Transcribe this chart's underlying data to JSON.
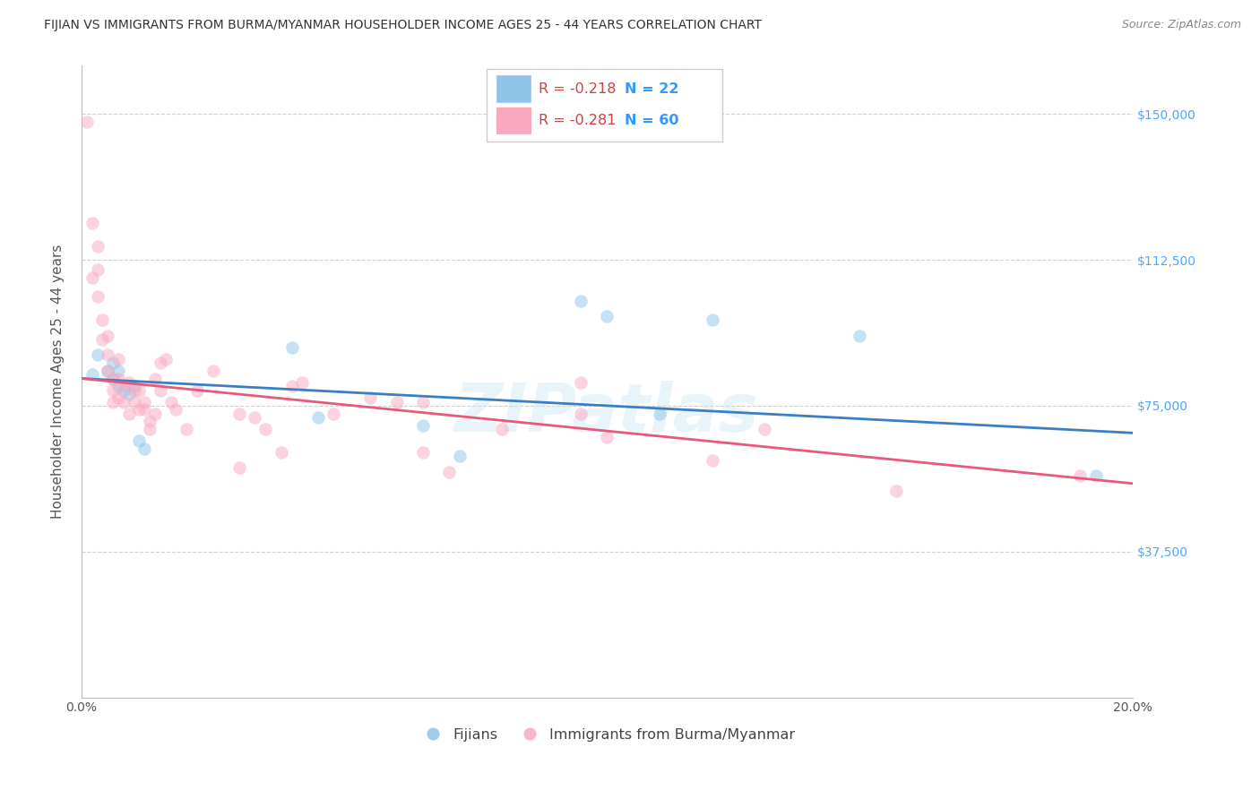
{
  "title": "FIJIAN VS IMMIGRANTS FROM BURMA/MYANMAR HOUSEHOLDER INCOME AGES 25 - 44 YEARS CORRELATION CHART",
  "source": "Source: ZipAtlas.com",
  "ylabel": "Householder Income Ages 25 - 44 years",
  "legend_bottom": [
    "Fijians",
    "Immigrants from Burma/Myanmar"
  ],
  "blue_legend_R": "R = -0.218",
  "blue_legend_N": "N = 22",
  "pink_legend_R": "R = -0.281",
  "pink_legend_N": "N = 60",
  "xlim": [
    0.0,
    0.2
  ],
  "ylim": [
    0,
    162500
  ],
  "yticks": [
    0,
    37500,
    75000,
    112500,
    150000
  ],
  "ytick_labels": [
    "",
    "$37,500",
    "$75,000",
    "$112,500",
    "$150,000"
  ],
  "xticks": [
    0.0,
    0.04,
    0.08,
    0.12,
    0.16,
    0.2
  ],
  "xtick_labels": [
    "0.0%",
    "",
    "",
    "",
    "",
    "20.0%"
  ],
  "blue_color": "#8ec4e8",
  "pink_color": "#f9a8c0",
  "blue_line_color": "#3a7fc1",
  "pink_line_color": "#e8587a",
  "watermark": "ZIPatlas",
  "background_color": "#ffffff",
  "grid_color": "#d0d0d0",
  "title_color": "#333333",
  "right_axis_label_color": "#4da6ff",
  "blue_scatter_x": [
    0.002,
    0.003,
    0.005,
    0.006,
    0.006,
    0.007,
    0.007,
    0.008,
    0.009,
    0.01,
    0.011,
    0.012,
    0.04,
    0.045,
    0.065,
    0.072,
    0.095,
    0.1,
    0.11,
    0.12,
    0.148,
    0.193
  ],
  "blue_scatter_y": [
    83000,
    88000,
    84000,
    82000,
    86000,
    84000,
    80000,
    79000,
    78000,
    80000,
    66000,
    64000,
    90000,
    72000,
    70000,
    62000,
    102000,
    98000,
    73000,
    97000,
    93000,
    57000
  ],
  "pink_scatter_x": [
    0.001,
    0.002,
    0.002,
    0.003,
    0.003,
    0.003,
    0.004,
    0.004,
    0.005,
    0.005,
    0.005,
    0.006,
    0.006,
    0.006,
    0.007,
    0.007,
    0.007,
    0.008,
    0.008,
    0.009,
    0.009,
    0.01,
    0.01,
    0.011,
    0.011,
    0.012,
    0.012,
    0.013,
    0.013,
    0.014,
    0.014,
    0.015,
    0.015,
    0.016,
    0.017,
    0.018,
    0.02,
    0.022,
    0.025,
    0.03,
    0.03,
    0.033,
    0.035,
    0.038,
    0.04,
    0.042,
    0.048,
    0.055,
    0.06,
    0.065,
    0.065,
    0.07,
    0.08,
    0.095,
    0.095,
    0.1,
    0.12,
    0.13,
    0.155,
    0.19
  ],
  "pink_scatter_y": [
    148000,
    108000,
    122000,
    103000,
    110000,
    116000,
    92000,
    97000,
    93000,
    88000,
    84000,
    82000,
    79000,
    76000,
    87000,
    82000,
    77000,
    80000,
    76000,
    81000,
    73000,
    79000,
    76000,
    79000,
    74000,
    74000,
    76000,
    71000,
    69000,
    73000,
    82000,
    79000,
    86000,
    87000,
    76000,
    74000,
    69000,
    79000,
    84000,
    73000,
    59000,
    72000,
    69000,
    63000,
    80000,
    81000,
    73000,
    77000,
    76000,
    76000,
    63000,
    58000,
    69000,
    73000,
    81000,
    67000,
    61000,
    69000,
    53000,
    57000
  ],
  "title_fontsize": 10.0,
  "source_fontsize": 9,
  "ylabel_fontsize": 11,
  "tick_fontsize": 10,
  "marker_size": 110,
  "marker_alpha": 0.5,
  "line_width": 2.0,
  "blue_line_x0": 0.0,
  "blue_line_y0": 82000,
  "blue_line_x1": 0.2,
  "blue_line_y1": 68000,
  "pink_line_x0": 0.0,
  "pink_line_y0": 82000,
  "pink_line_x1": 0.2,
  "pink_line_y1": 55000
}
